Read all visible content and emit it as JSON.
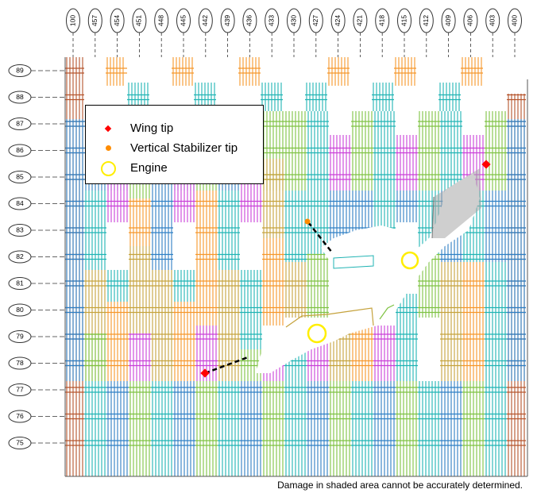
{
  "diagram": {
    "column_labels": [
      "100",
      "457",
      "454",
      "451",
      "448",
      "445",
      "442",
      "439",
      "436",
      "433",
      "430",
      "427",
      "424",
      "421",
      "418",
      "415",
      "412",
      "409",
      "406",
      "403",
      "400"
    ],
    "row_labels": [
      "89",
      "88",
      "87",
      "86",
      "85",
      "84",
      "83",
      "82",
      "81",
      "80",
      "79",
      "78",
      "77",
      "76",
      "75"
    ],
    "colors": {
      "blue": "#2e7fc4",
      "teal": "#1fb3b3",
      "green": "#7ec242",
      "orange": "#f5962a",
      "magenta": "#c93fd8",
      "olive": "#c5a23c",
      "brown": "#b5542c",
      "grid_line": "#555555",
      "shade": "#a8a8a8"
    }
  },
  "legend": {
    "items": [
      {
        "symbol": "red-diamond",
        "label": "Wing tip"
      },
      {
        "symbol": "orange-dot",
        "label": "Vertical Stabilizer tip"
      },
      {
        "symbol": "yellow-ring",
        "label": "Engine"
      }
    ]
  },
  "footnote": "Damage in shaded area cannot be accurately determined."
}
